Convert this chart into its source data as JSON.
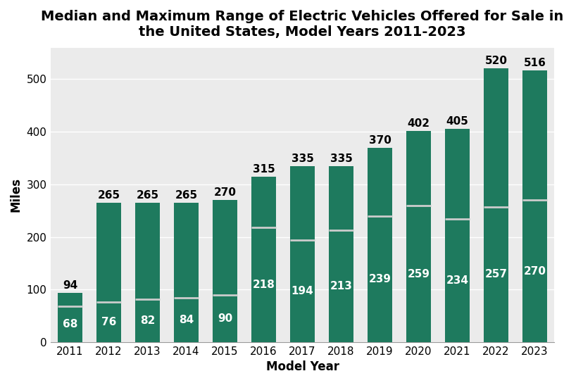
{
  "title": "Median and Maximum Range of Electric Vehicles Offered for Sale in\nthe United States, Model Years 2011-2023",
  "xlabel": "Model Year",
  "ylabel": "Miles",
  "years": [
    2011,
    2012,
    2013,
    2014,
    2015,
    2016,
    2017,
    2018,
    2019,
    2020,
    2021,
    2022,
    2023
  ],
  "max_values": [
    94,
    265,
    265,
    265,
    270,
    315,
    335,
    335,
    370,
    402,
    405,
    520,
    516
  ],
  "median_values": [
    68,
    76,
    82,
    84,
    90,
    218,
    194,
    213,
    239,
    259,
    234,
    257,
    270
  ],
  "bar_color": "#1e7a5e",
  "median_line_color": "#cccccc",
  "background_color": "#ffffff",
  "plot_bg_color": "#ebebeb",
  "grid_color": "#ffffff",
  "ylim": [
    0,
    560
  ],
  "yticks": [
    0,
    100,
    200,
    300,
    400,
    500
  ],
  "title_fontsize": 14,
  "axis_label_fontsize": 12,
  "tick_fontsize": 11,
  "value_fontsize_max": 11,
  "value_fontsize_med": 11,
  "bar_width": 0.65
}
